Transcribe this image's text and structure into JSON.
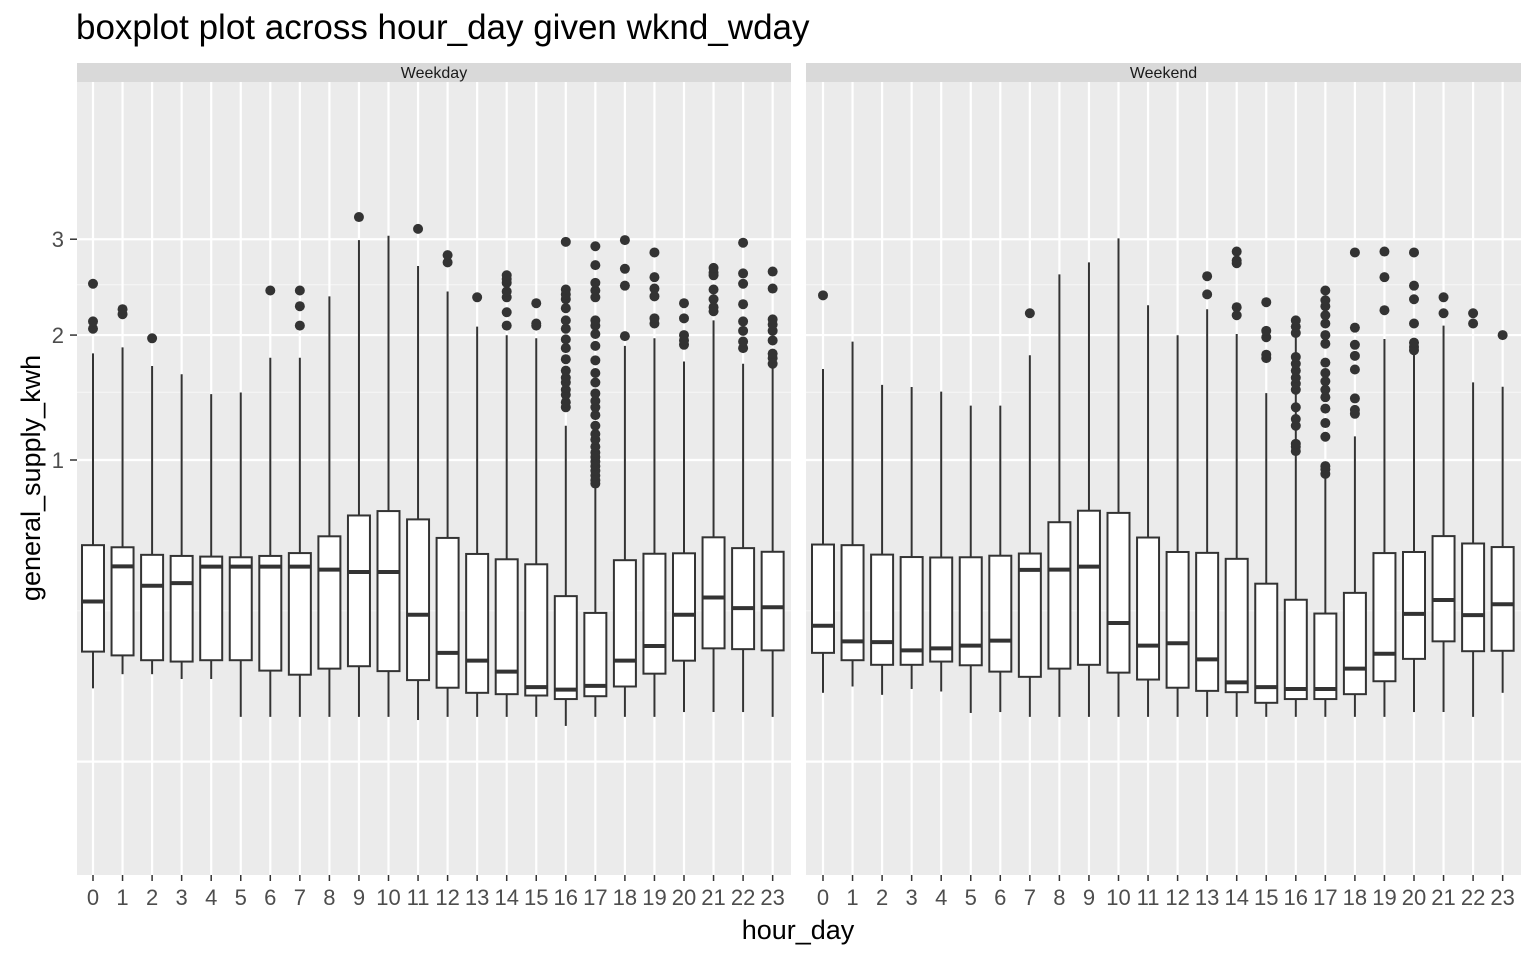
{
  "chart_data": {
    "type": "boxplot",
    "title": "boxplot plot across hour_day given wknd_wday",
    "xlabel": "hour_day",
    "ylabel": "general_supply_kwh",
    "y_scale": "sqrt",
    "ylim": [
      0,
      3.6
    ],
    "y_ticks": [
      1,
      2,
      3
    ],
    "grid": true,
    "categories": [
      "0",
      "1",
      "2",
      "3",
      "4",
      "5",
      "6",
      "7",
      "8",
      "9",
      "10",
      "11",
      "12",
      "13",
      "14",
      "15",
      "16",
      "17",
      "18",
      "19",
      "20",
      "21",
      "22",
      "23"
    ],
    "facets": [
      {
        "label": "Weekday",
        "boxes": [
          {
            "x": "0",
            "whisker_low": 0.059,
            "q1": 0.133,
            "median": 0.282,
            "q3": 0.515,
            "whisker_high": 1.832,
            "outliers": [
              2.06,
              2.13,
              2.51
            ]
          },
          {
            "x": "1",
            "whisker_low": 0.084,
            "q1": 0.124,
            "median": 0.419,
            "q3": 0.505,
            "whisker_high": 1.886,
            "outliers": [
              2.2,
              2.25
            ]
          },
          {
            "x": "2",
            "whisker_low": 0.084,
            "q1": 0.113,
            "median": 0.34,
            "q3": 0.47,
            "whisker_high": 1.72,
            "outliers": [
              1.97
            ]
          },
          {
            "x": "3",
            "whisker_low": 0.075,
            "q1": 0.11,
            "median": 0.35,
            "q3": 0.465,
            "whisker_high": 1.65,
            "outliers": []
          },
          {
            "x": "4",
            "whisker_low": 0.075,
            "q1": 0.113,
            "median": 0.418,
            "q3": 0.462,
            "whisker_high": 1.485,
            "outliers": []
          },
          {
            "x": "5",
            "whisker_low": 0.022,
            "q1": 0.113,
            "median": 0.418,
            "q3": 0.459,
            "whisker_high": 1.498,
            "outliers": []
          },
          {
            "x": "6",
            "whisker_low": 0.022,
            "q1": 0.091,
            "median": 0.418,
            "q3": 0.465,
            "whisker_high": 1.793,
            "outliers": [
              2.44
            ]
          },
          {
            "x": "7",
            "whisker_low": 0.022,
            "q1": 0.083,
            "median": 0.418,
            "q3": 0.478,
            "whisker_high": 1.793,
            "outliers": [
              2.09,
              2.28,
              2.44
            ]
          },
          {
            "x": "8",
            "whisker_low": 0.022,
            "q1": 0.095,
            "median": 0.405,
            "q3": 0.558,
            "whisker_high": 2.38,
            "outliers": []
          },
          {
            "x": "9",
            "whisker_low": 0.022,
            "q1": 0.1,
            "median": 0.395,
            "q3": 0.666,
            "whisker_high": 2.99,
            "outliers": [
              3.26
            ]
          },
          {
            "x": "10",
            "whisker_low": 0.022,
            "q1": 0.09,
            "median": 0.395,
            "q3": 0.69,
            "whisker_high": 3.04,
            "outliers": []
          },
          {
            "x": "11",
            "whisker_low": 0.019,
            "q1": 0.073,
            "median": 0.237,
            "q3": 0.645,
            "whisker_high": 2.7,
            "outliers": [
              3.12
            ]
          },
          {
            "x": "12",
            "whisker_low": 0.022,
            "q1": 0.06,
            "median": 0.13,
            "q3": 0.55,
            "whisker_high": 2.43,
            "outliers": [
              2.74,
              2.82
            ]
          },
          {
            "x": "13",
            "whisker_low": 0.022,
            "q1": 0.052,
            "median": 0.112,
            "q3": 0.474,
            "whisker_high": 2.08,
            "outliers": [
              2.37
            ]
          },
          {
            "x": "14",
            "whisker_low": 0.022,
            "q1": 0.05,
            "median": 0.089,
            "q3": 0.45,
            "whisker_high": 1.998,
            "outliers": [
              2.09,
              2.22,
              2.37,
              2.43,
              2.52,
              2.56,
              2.6
            ]
          },
          {
            "x": "15",
            "whisker_low": 0.022,
            "q1": 0.048,
            "median": 0.061,
            "q3": 0.428,
            "whisker_high": 1.97,
            "outliers": [
              2.09,
              2.11,
              2.31
            ]
          },
          {
            "x": "16",
            "whisker_low": 0.014,
            "q1": 0.043,
            "median": 0.057,
            "q3": 0.301,
            "whisker_high": 1.24,
            "outliers": [
              1.38,
              1.42,
              1.48,
              1.52,
              1.58,
              1.62,
              1.68,
              1.78,
              1.88,
              1.96,
              2.06,
              2.14,
              2.26,
              2.35,
              2.4,
              2.45,
              2.97
            ]
          },
          {
            "x": "17",
            "whisker_low": 0.022,
            "q1": 0.047,
            "median": 0.063,
            "q3": 0.243,
            "whisker_high": 0.83,
            "outliers": [
              0.85,
              0.87,
              0.9,
              0.93,
              0.96,
              0.99,
              1.02,
              1.05,
              1.09,
              1.14,
              1.18,
              1.24,
              1.32,
              1.38,
              1.43,
              1.49,
              1.58,
              1.66,
              1.77,
              1.9,
              2.01,
              2.09,
              2.14,
              2.37,
              2.44,
              2.52,
              2.71,
              2.92
            ]
          },
          {
            "x": "18",
            "whisker_low": 0.022,
            "q1": 0.062,
            "median": 0.112,
            "q3": 0.446,
            "whisker_high": 1.9,
            "outliers": [
              1.99,
              2.49,
              2.67,
              2.99
            ]
          },
          {
            "x": "19",
            "whisker_low": 0.022,
            "q1": 0.085,
            "median": 0.147,
            "q3": 0.475,
            "whisker_high": 1.97,
            "outliers": [
              2.11,
              2.16,
              2.38,
              2.46,
              2.58,
              2.85
            ]
          },
          {
            "x": "20",
            "whisker_low": 0.027,
            "q1": 0.112,
            "median": 0.237,
            "q3": 0.477,
            "whisker_high": 1.76,
            "outliers": [
              1.91,
              1.95,
              2.0,
              2.16,
              2.31
            ]
          },
          {
            "x": "21",
            "whisker_low": 0.027,
            "q1": 0.141,
            "median": 0.296,
            "q3": 0.553,
            "whisker_high": 2.14,
            "outliers": [
              2.23,
              2.27,
              2.35,
              2.45,
              2.6,
              2.63,
              2.68
            ]
          },
          {
            "x": "22",
            "whisker_low": 0.027,
            "q1": 0.139,
            "median": 0.259,
            "q3": 0.501,
            "whisker_high": 1.74,
            "outliers": [
              1.88,
              1.94,
              2.04,
              2.13,
              2.3,
              2.51,
              2.62,
              2.96
            ]
          },
          {
            "x": "23",
            "whisker_low": 0.022,
            "q1": 0.136,
            "median": 0.262,
            "q3": 0.484,
            "whisker_high": 1.72,
            "outliers": [
              1.74,
              1.79,
              1.83,
              1.95,
              2.04,
              2.1,
              2.15,
              2.46,
              2.64
            ]
          }
        ]
      },
      {
        "label": "Weekend",
        "boxes": [
          {
            "x": "0",
            "whisker_low": 0.052,
            "q1": 0.13,
            "median": 0.203,
            "q3": 0.518,
            "whisker_high": 1.695,
            "outliers": [
              2.39
            ]
          },
          {
            "x": "1",
            "whisker_low": 0.062,
            "q1": 0.113,
            "median": 0.159,
            "q3": 0.515,
            "whisker_high": 1.939,
            "outliers": []
          },
          {
            "x": "2",
            "whisker_low": 0.049,
            "q1": 0.103,
            "median": 0.157,
            "q3": 0.471,
            "whisker_high": 1.56,
            "outliers": []
          },
          {
            "x": "3",
            "whisker_low": 0.058,
            "q1": 0.103,
            "median": 0.136,
            "q3": 0.46,
            "whisker_high": 1.543,
            "outliers": []
          },
          {
            "x": "4",
            "whisker_low": 0.054,
            "q1": 0.11,
            "median": 0.141,
            "q3": 0.458,
            "whisker_high": 1.505,
            "outliers": []
          },
          {
            "x": "5",
            "whisker_low": 0.026,
            "q1": 0.102,
            "median": 0.148,
            "q3": 0.459,
            "whisker_high": 1.393,
            "outliers": []
          },
          {
            "x": "6",
            "whisker_low": 0.027,
            "q1": 0.089,
            "median": 0.161,
            "q3": 0.466,
            "whisker_high": 1.393,
            "outliers": []
          },
          {
            "x": "7",
            "whisker_low": 0.022,
            "q1": 0.079,
            "median": 0.404,
            "q3": 0.476,
            "whisker_high": 1.815,
            "outliers": [
              2.21
            ]
          },
          {
            "x": "8",
            "whisker_low": 0.022,
            "q1": 0.095,
            "median": 0.405,
            "q3": 0.63,
            "whisker_high": 2.61,
            "outliers": []
          },
          {
            "x": "9",
            "whisker_low": 0.022,
            "q1": 0.103,
            "median": 0.418,
            "q3": 0.692,
            "whisker_high": 2.74,
            "outliers": []
          },
          {
            "x": "10",
            "whisker_low": 0.022,
            "q1": 0.087,
            "median": 0.211,
            "q3": 0.68,
            "whisker_high": 3.01,
            "outliers": []
          },
          {
            "x": "11",
            "whisker_low": 0.022,
            "q1": 0.074,
            "median": 0.148,
            "q3": 0.552,
            "whisker_high": 2.29,
            "outliers": []
          },
          {
            "x": "12",
            "whisker_low": 0.022,
            "q1": 0.06,
            "median": 0.154,
            "q3": 0.483,
            "whisker_high": 1.998,
            "outliers": []
          },
          {
            "x": "13",
            "whisker_low": 0.022,
            "q1": 0.055,
            "median": 0.115,
            "q3": 0.479,
            "whisker_high": 2.25,
            "outliers": [
              2.4,
              2.59
            ]
          },
          {
            "x": "14",
            "whisker_low": 0.022,
            "q1": 0.053,
            "median": 0.069,
            "q3": 0.452,
            "whisker_high": 2.01,
            "outliers": [
              2.19,
              2.27,
              2.73,
              2.76,
              2.86
            ]
          },
          {
            "x": "15",
            "whisker_low": 0.022,
            "q1": 0.038,
            "median": 0.061,
            "q3": 0.348,
            "whisker_high": 1.493,
            "outliers": [
              1.79,
              1.82,
              1.98,
              2.04,
              2.32
            ]
          },
          {
            "x": "16",
            "whisker_low": 0.022,
            "q1": 0.043,
            "median": 0.058,
            "q3": 0.288,
            "whisker_high": 2.08,
            "outliers": [
              1.06,
              1.09,
              1.11,
              1.24,
              1.29,
              1.38,
              1.52,
              1.57,
              1.62,
              1.68,
              1.74,
              1.8,
              2.02,
              2.08,
              2.14
            ]
          },
          {
            "x": "17",
            "whisker_low": 0.022,
            "q1": 0.043,
            "median": 0.058,
            "q3": 0.241,
            "whisker_high": 0.9,
            "outliers": [
              0.91,
              0.94,
              0.96,
              1.16,
              1.26,
              1.37,
              1.46,
              1.52,
              1.59,
              1.66,
              1.75,
              1.92,
              2.0,
              2.11,
              2.19,
              2.28,
              2.34,
              2.44
            ]
          },
          {
            "x": "18",
            "whisker_low": 0.022,
            "q1": 0.05,
            "median": 0.095,
            "q3": 0.313,
            "whisker_high": 1.163,
            "outliers": [
              1.33,
              1.36,
              1.45,
              1.69,
              1.81,
              1.91,
              2.07,
              2.85
            ]
          },
          {
            "x": "19",
            "whisker_low": 0.022,
            "q1": 0.071,
            "median": 0.128,
            "q3": 0.478,
            "whisker_high": 1.963,
            "outliers": [
              2.24,
              2.58,
              2.86
            ]
          },
          {
            "x": "20",
            "whisker_low": 0.027,
            "q1": 0.116,
            "median": 0.24,
            "q3": 0.483,
            "whisker_high": 1.84,
            "outliers": [
              1.86,
              1.89,
              1.93,
              2.11,
              2.35,
              2.49,
              2.85
            ]
          },
          {
            "x": "21",
            "whisker_low": 0.027,
            "q1": 0.159,
            "median": 0.287,
            "q3": 0.559,
            "whisker_high": 2.09,
            "outliers": [
              2.21,
              2.37
            ]
          },
          {
            "x": "22",
            "whisker_low": 0.022,
            "q1": 0.134,
            "median": 0.236,
            "q3": 0.523,
            "whisker_high": 1.581,
            "outliers": [
              2.11,
              2.21
            ]
          },
          {
            "x": "23",
            "whisker_low": 0.052,
            "q1": 0.135,
            "median": 0.272,
            "q3": 0.506,
            "whisker_high": 1.545,
            "outliers": [
              2.0
            ]
          }
        ]
      }
    ]
  }
}
